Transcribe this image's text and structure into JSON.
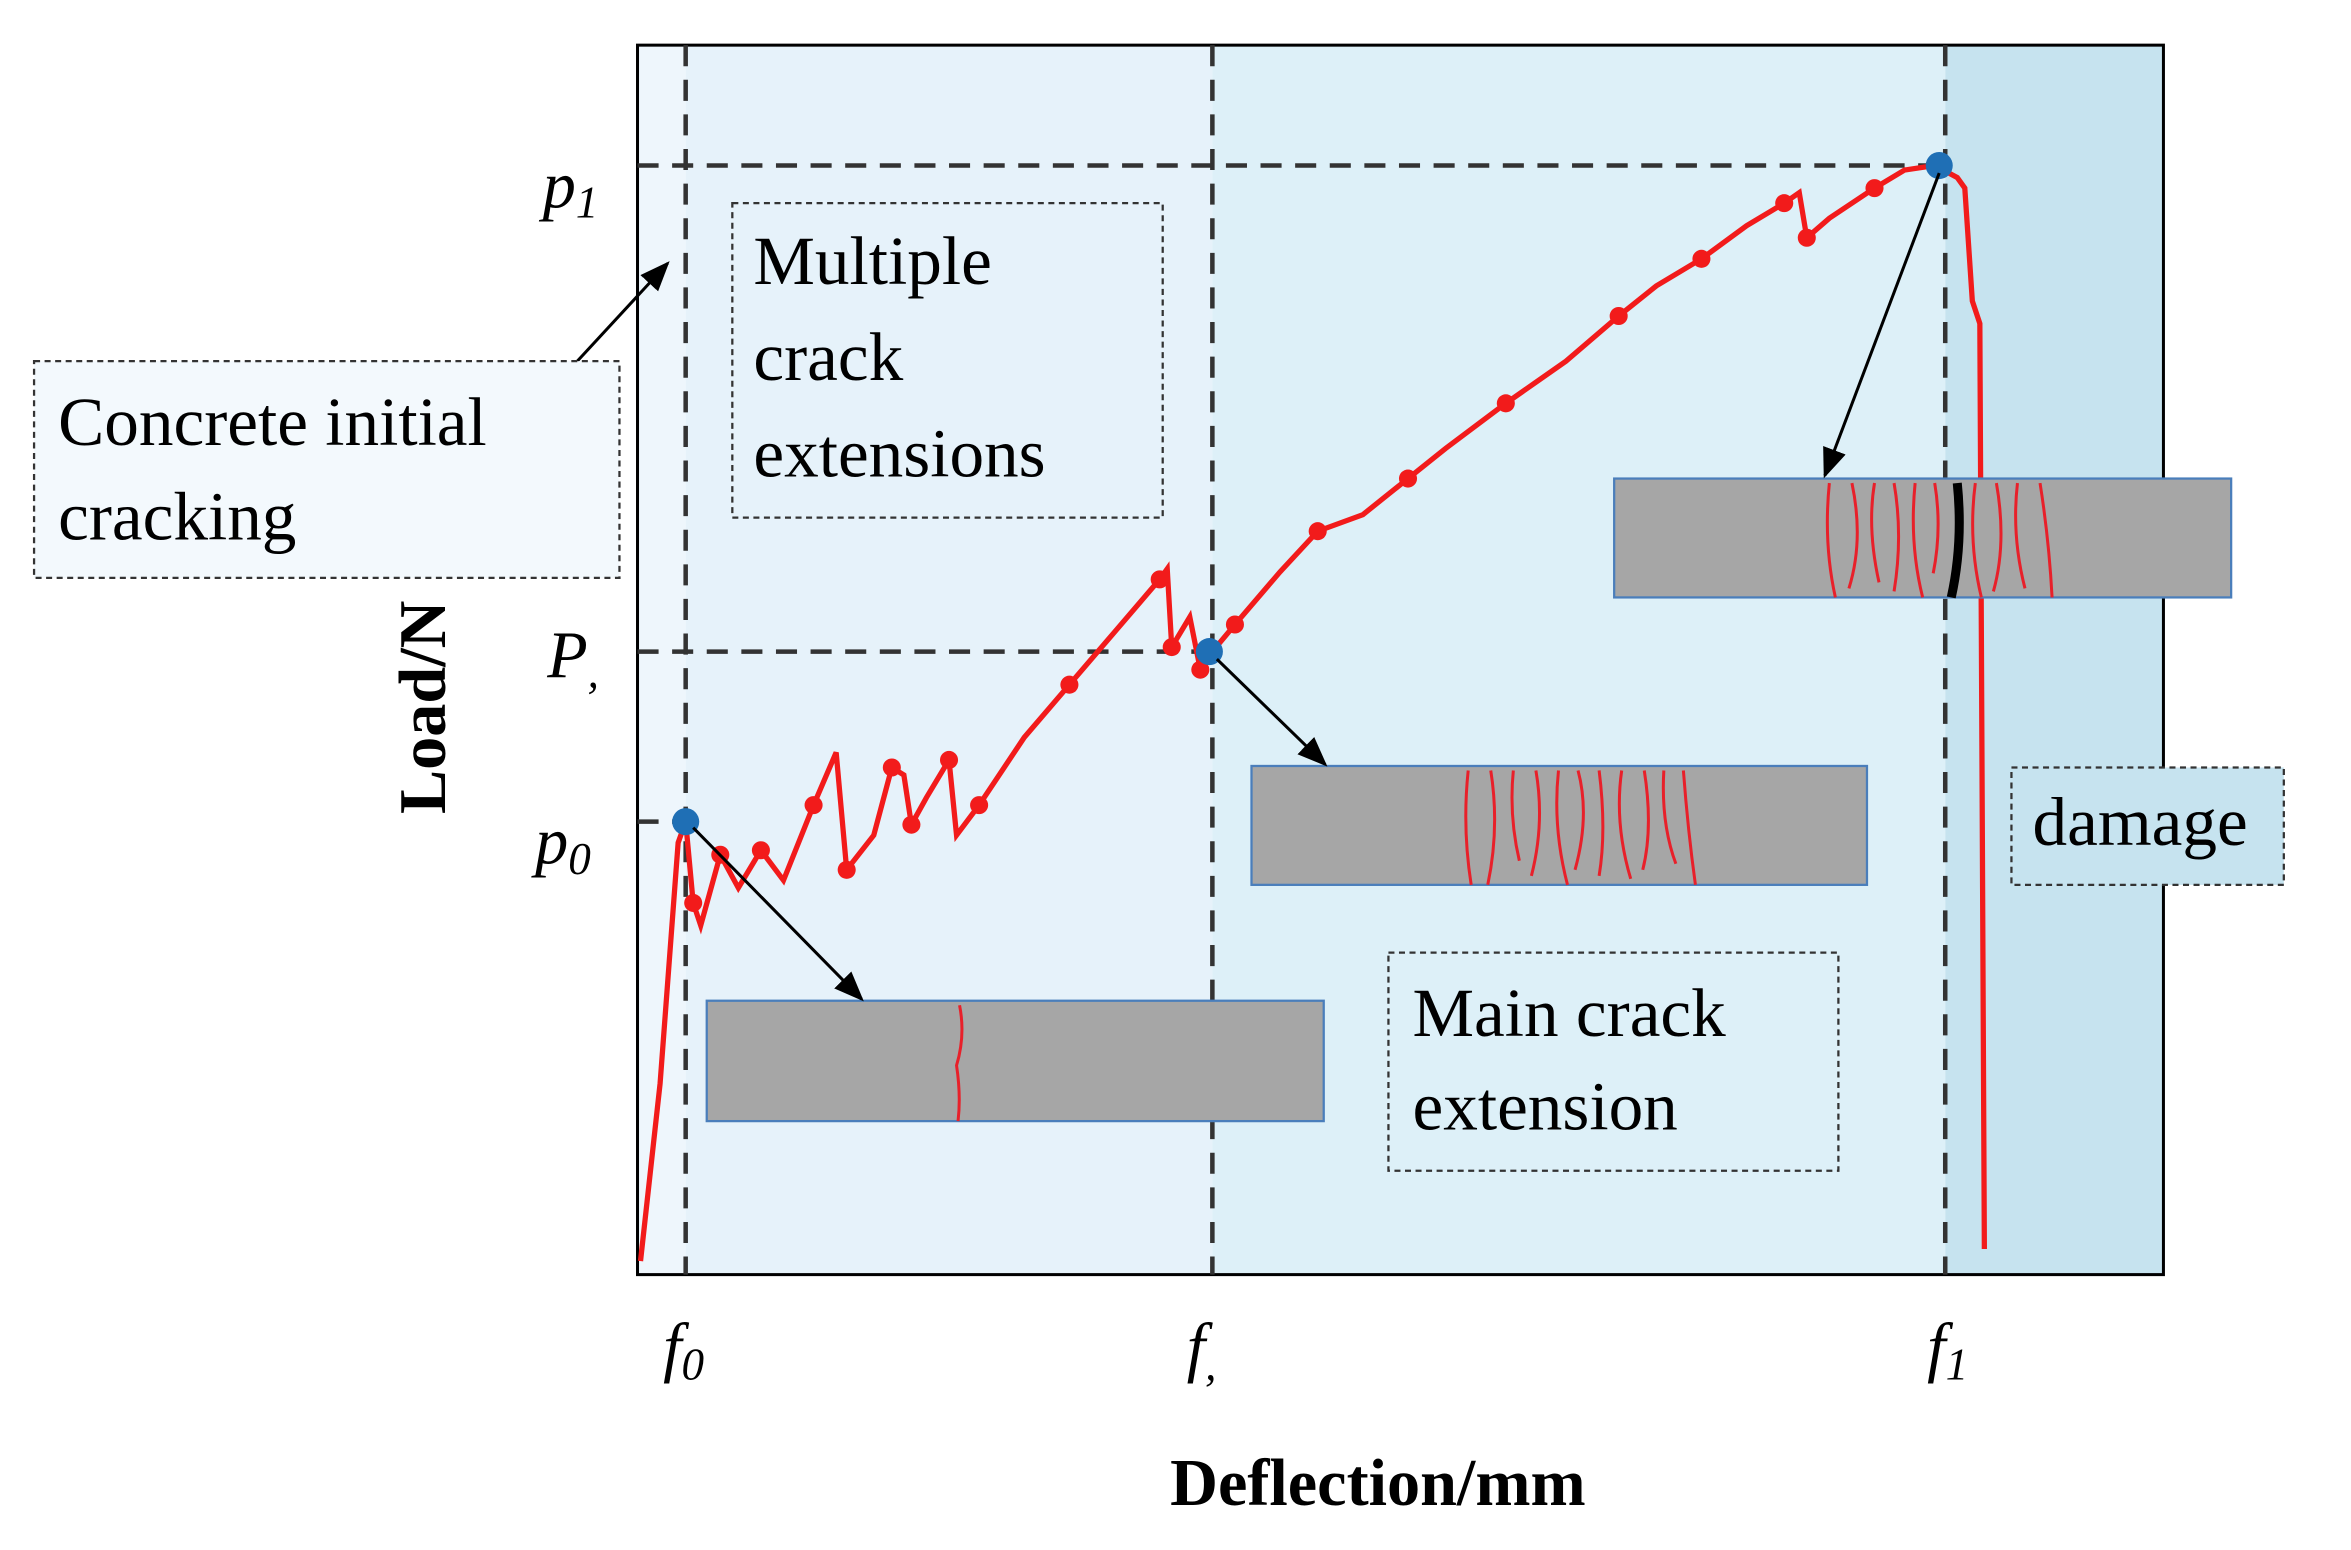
{
  "axes": {
    "y_label": "Load/N",
    "x_label": "Deflection/mm",
    "y_ticks": [
      {
        "letter": "p",
        "sub": "1"
      },
      {
        "letter": "P",
        "sub": ","
      },
      {
        "letter": "p",
        "sub": "0"
      }
    ],
    "x_ticks": [
      {
        "letter": "f",
        "sub": "0"
      },
      {
        "letter": "f",
        "sub": ","
      },
      {
        "letter": "f",
        "sub": "1"
      }
    ]
  },
  "annotations": {
    "initial": [
      "Concrete initial",
      "cracking"
    ],
    "multiple": [
      "Multiple",
      "crack",
      "extensions"
    ],
    "main": [
      "Main crack",
      "extension"
    ],
    "damage": [
      "damage"
    ]
  }
}
